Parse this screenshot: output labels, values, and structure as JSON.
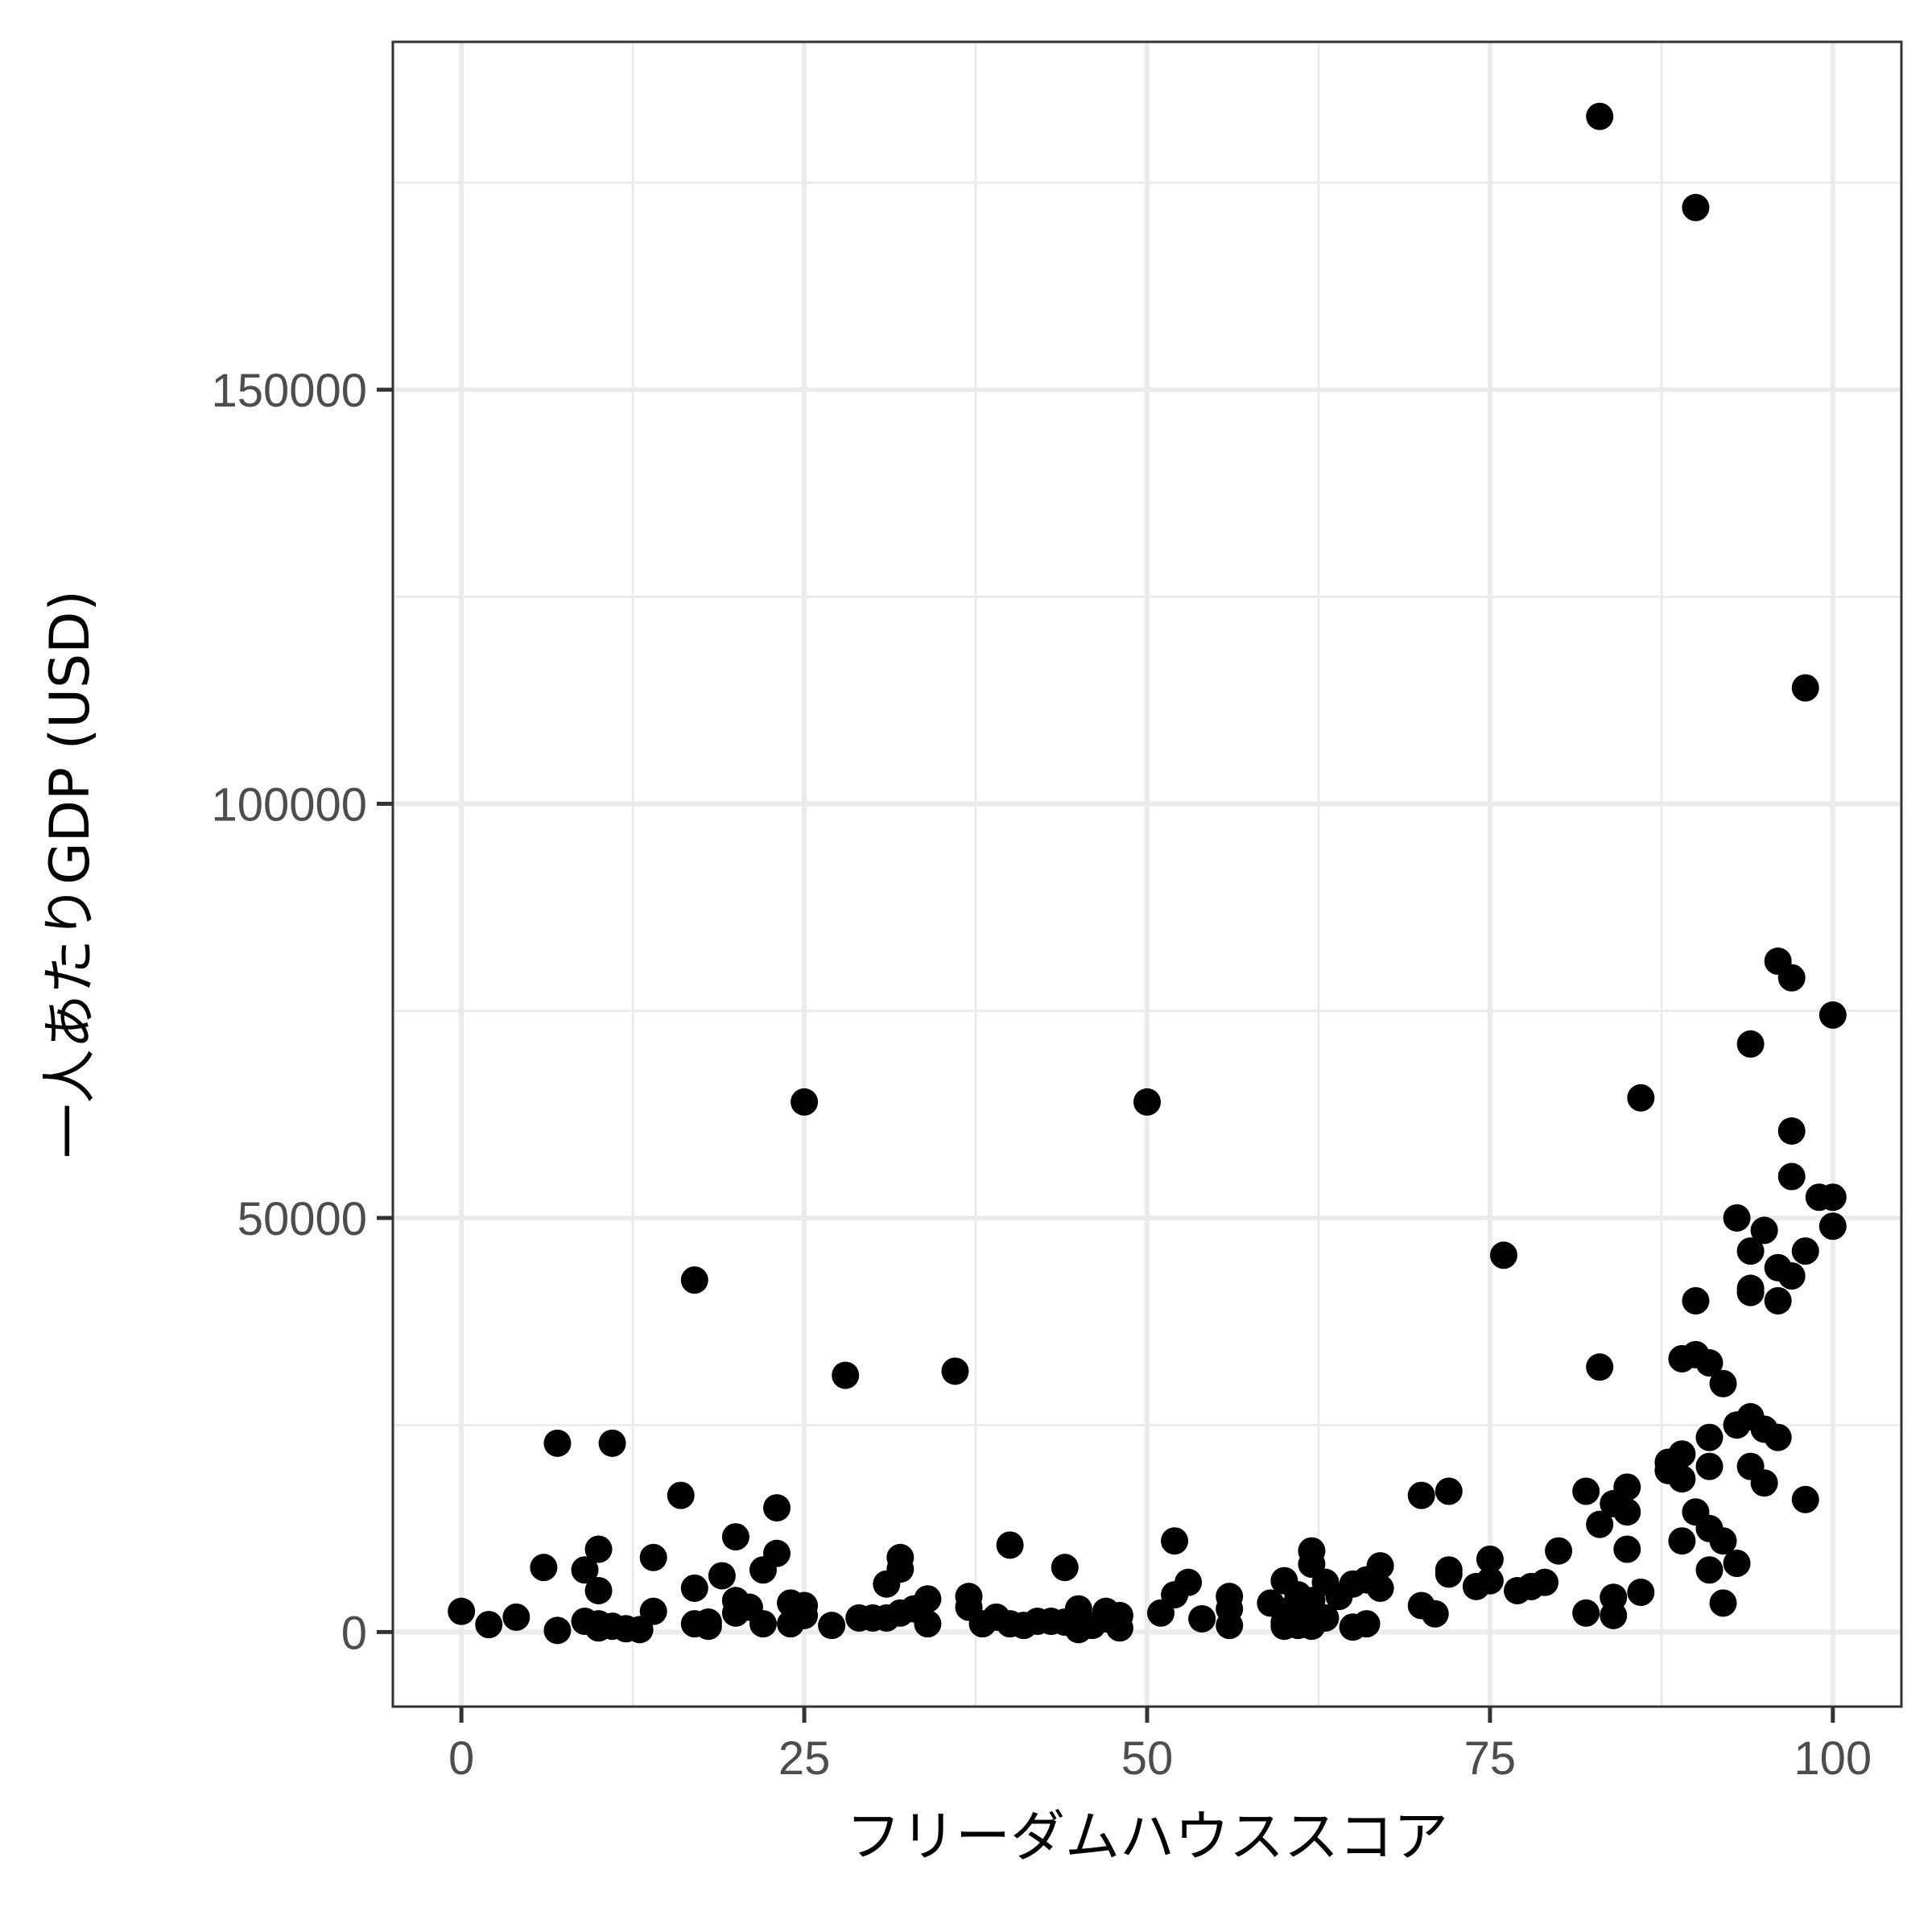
{
  "chart_data": {
    "type": "scatter",
    "title": "",
    "xlabel": "フリーダムハウススコア",
    "ylabel": "一人あたりGDP (USD)",
    "xlim": [
      -5,
      105
    ],
    "ylim": [
      -9000,
      192000
    ],
    "x_ticks": [
      0,
      25,
      50,
      75,
      100
    ],
    "y_ticks": [
      0,
      50000,
      100000,
      150000
    ],
    "x_minor": [
      12.5,
      37.5,
      62.5,
      87.5
    ],
    "y_minor": [
      25000,
      75000,
      125000,
      175000
    ],
    "grid": true,
    "colors": {
      "point": "#000000",
      "grid": "#ebebeb",
      "panel_border": "#333333",
      "tick_text": "#4d4d4d"
    },
    "points": [
      [
        83,
        183000
      ],
      [
        90,
        172000
      ],
      [
        98,
        114000
      ],
      [
        96,
        81000
      ],
      [
        97,
        79000
      ],
      [
        100,
        74500
      ],
      [
        94,
        71000
      ],
      [
        86,
        64500
      ],
      [
        25,
        64000
      ],
      [
        50,
        64000
      ],
      [
        97,
        60500
      ],
      [
        97,
        55000
      ],
      [
        99,
        52500
      ],
      [
        100,
        52500
      ],
      [
        93,
        50000
      ],
      [
        95,
        48500
      ],
      [
        100,
        49000
      ],
      [
        94,
        46000
      ],
      [
        98,
        46000
      ],
      [
        76,
        45500
      ],
      [
        96,
        44000
      ],
      [
        97,
        43000
      ],
      [
        17,
        42500
      ],
      [
        94,
        41500
      ],
      [
        94,
        41000
      ],
      [
        96,
        40000
      ],
      [
        90,
        40000
      ],
      [
        89,
        33000
      ],
      [
        90,
        33500
      ],
      [
        91,
        32500
      ],
      [
        83,
        32000
      ],
      [
        36,
        31500
      ],
      [
        28,
        31000
      ],
      [
        92,
        30000
      ],
      [
        94,
        26000
      ],
      [
        93,
        25000
      ],
      [
        95,
        24500
      ],
      [
        91,
        23500
      ],
      [
        96,
        23500
      ],
      [
        7,
        22800
      ],
      [
        11,
        22800
      ],
      [
        89,
        21500
      ],
      [
        88,
        20500
      ],
      [
        91,
        20000
      ],
      [
        94,
        20000
      ],
      [
        88,
        19500
      ],
      [
        89,
        18500
      ],
      [
        95,
        18000
      ],
      [
        85,
        17500
      ],
      [
        82,
        17000
      ],
      [
        72,
        17000
      ],
      [
        70,
        16500
      ],
      [
        16,
        16500
      ],
      [
        98,
        16000
      ],
      [
        84,
        15500
      ],
      [
        23,
        15000
      ],
      [
        85,
        14500
      ],
      [
        90,
        14500
      ],
      [
        83,
        13000
      ],
      [
        91,
        12500
      ],
      [
        20,
        11500
      ],
      [
        52,
        11000
      ],
      [
        92,
        11000
      ],
      [
        89,
        11000
      ],
      [
        40,
        10500
      ],
      [
        10,
        10000
      ],
      [
        85,
        10000
      ],
      [
        80,
        9800
      ],
      [
        62,
        9800
      ],
      [
        23,
        9500
      ],
      [
        14,
        9000
      ],
      [
        32,
        9000
      ],
      [
        75,
        8800
      ],
      [
        93,
        8300
      ],
      [
        62,
        8200
      ],
      [
        6,
        7800
      ],
      [
        67,
        8000
      ],
      [
        44,
        7800
      ],
      [
        9,
        7500
      ],
      [
        22,
        7500
      ],
      [
        32,
        7600
      ],
      [
        91,
        7500
      ],
      [
        72,
        7500
      ],
      [
        72,
        7000
      ],
      [
        19,
        6800
      ],
      [
        66,
        6300
      ],
      [
        60,
        6200
      ],
      [
        63,
        6000
      ],
      [
        53,
        6000
      ],
      [
        75,
        6200
      ],
      [
        79,
        6000
      ],
      [
        65,
        5800
      ],
      [
        74,
        5500
      ],
      [
        31,
        5800
      ],
      [
        17,
        5300
      ],
      [
        78,
        5500
      ],
      [
        67,
        5300
      ],
      [
        10,
        5000
      ],
      [
        77,
        5000
      ],
      [
        86,
        4800
      ],
      [
        52,
        4500
      ],
      [
        56,
        4300
      ],
      [
        61,
        4500
      ],
      [
        37,
        4300
      ],
      [
        64,
        4300
      ],
      [
        84,
        4200
      ],
      [
        34,
        4000
      ],
      [
        20,
        3800
      ],
      [
        62,
        3800
      ],
      [
        59,
        3500
      ],
      [
        92,
        3500
      ],
      [
        24,
        3500
      ],
      [
        25,
        3200
      ],
      [
        61,
        3200
      ],
      [
        70,
        3200
      ],
      [
        21,
        3000
      ],
      [
        37,
        3000
      ],
      [
        45,
        2800
      ],
      [
        33,
        2800
      ],
      [
        61,
        2800
      ],
      [
        47,
        2500
      ],
      [
        60,
        2500
      ],
      [
        56,
        2800
      ],
      [
        14,
        2500
      ],
      [
        0,
        2500
      ],
      [
        82,
        2300
      ],
      [
        51,
        2300
      ],
      [
        20,
        2300
      ],
      [
        32,
        2300
      ],
      [
        71,
        2200
      ],
      [
        84,
        2000
      ],
      [
        48,
        2000
      ],
      [
        4,
        1800
      ],
      [
        25,
        2000
      ],
      [
        39,
        1800
      ],
      [
        54,
        1600
      ],
      [
        30,
        1700
      ],
      [
        63,
        1700
      ],
      [
        47,
        1600
      ],
      [
        29,
        1700
      ],
      [
        31,
        1700
      ],
      [
        62,
        1400
      ],
      [
        9,
        1300
      ],
      [
        18,
        1200
      ],
      [
        44,
        1200
      ],
      [
        42,
        1300
      ],
      [
        43,
        1300
      ],
      [
        60,
        1200
      ],
      [
        34,
        1000
      ],
      [
        40,
        1000
      ],
      [
        66,
        1000
      ],
      [
        10,
        1000
      ],
      [
        22,
        1000
      ],
      [
        24,
        1000
      ],
      [
        17,
        1000
      ],
      [
        38,
        1000
      ],
      [
        2,
        900
      ],
      [
        27,
        800
      ],
      [
        41,
        800
      ],
      [
        46,
        800
      ],
      [
        56,
        800
      ],
      [
        61,
        800
      ],
      [
        11,
        700
      ],
      [
        18,
        700
      ],
      [
        60,
        700
      ],
      [
        62,
        700
      ],
      [
        65,
        600
      ],
      [
        10,
        500
      ],
      [
        48,
        500
      ],
      [
        12,
        400
      ],
      [
        13,
        300
      ],
      [
        45,
        300
      ],
      [
        7,
        200
      ]
    ]
  }
}
